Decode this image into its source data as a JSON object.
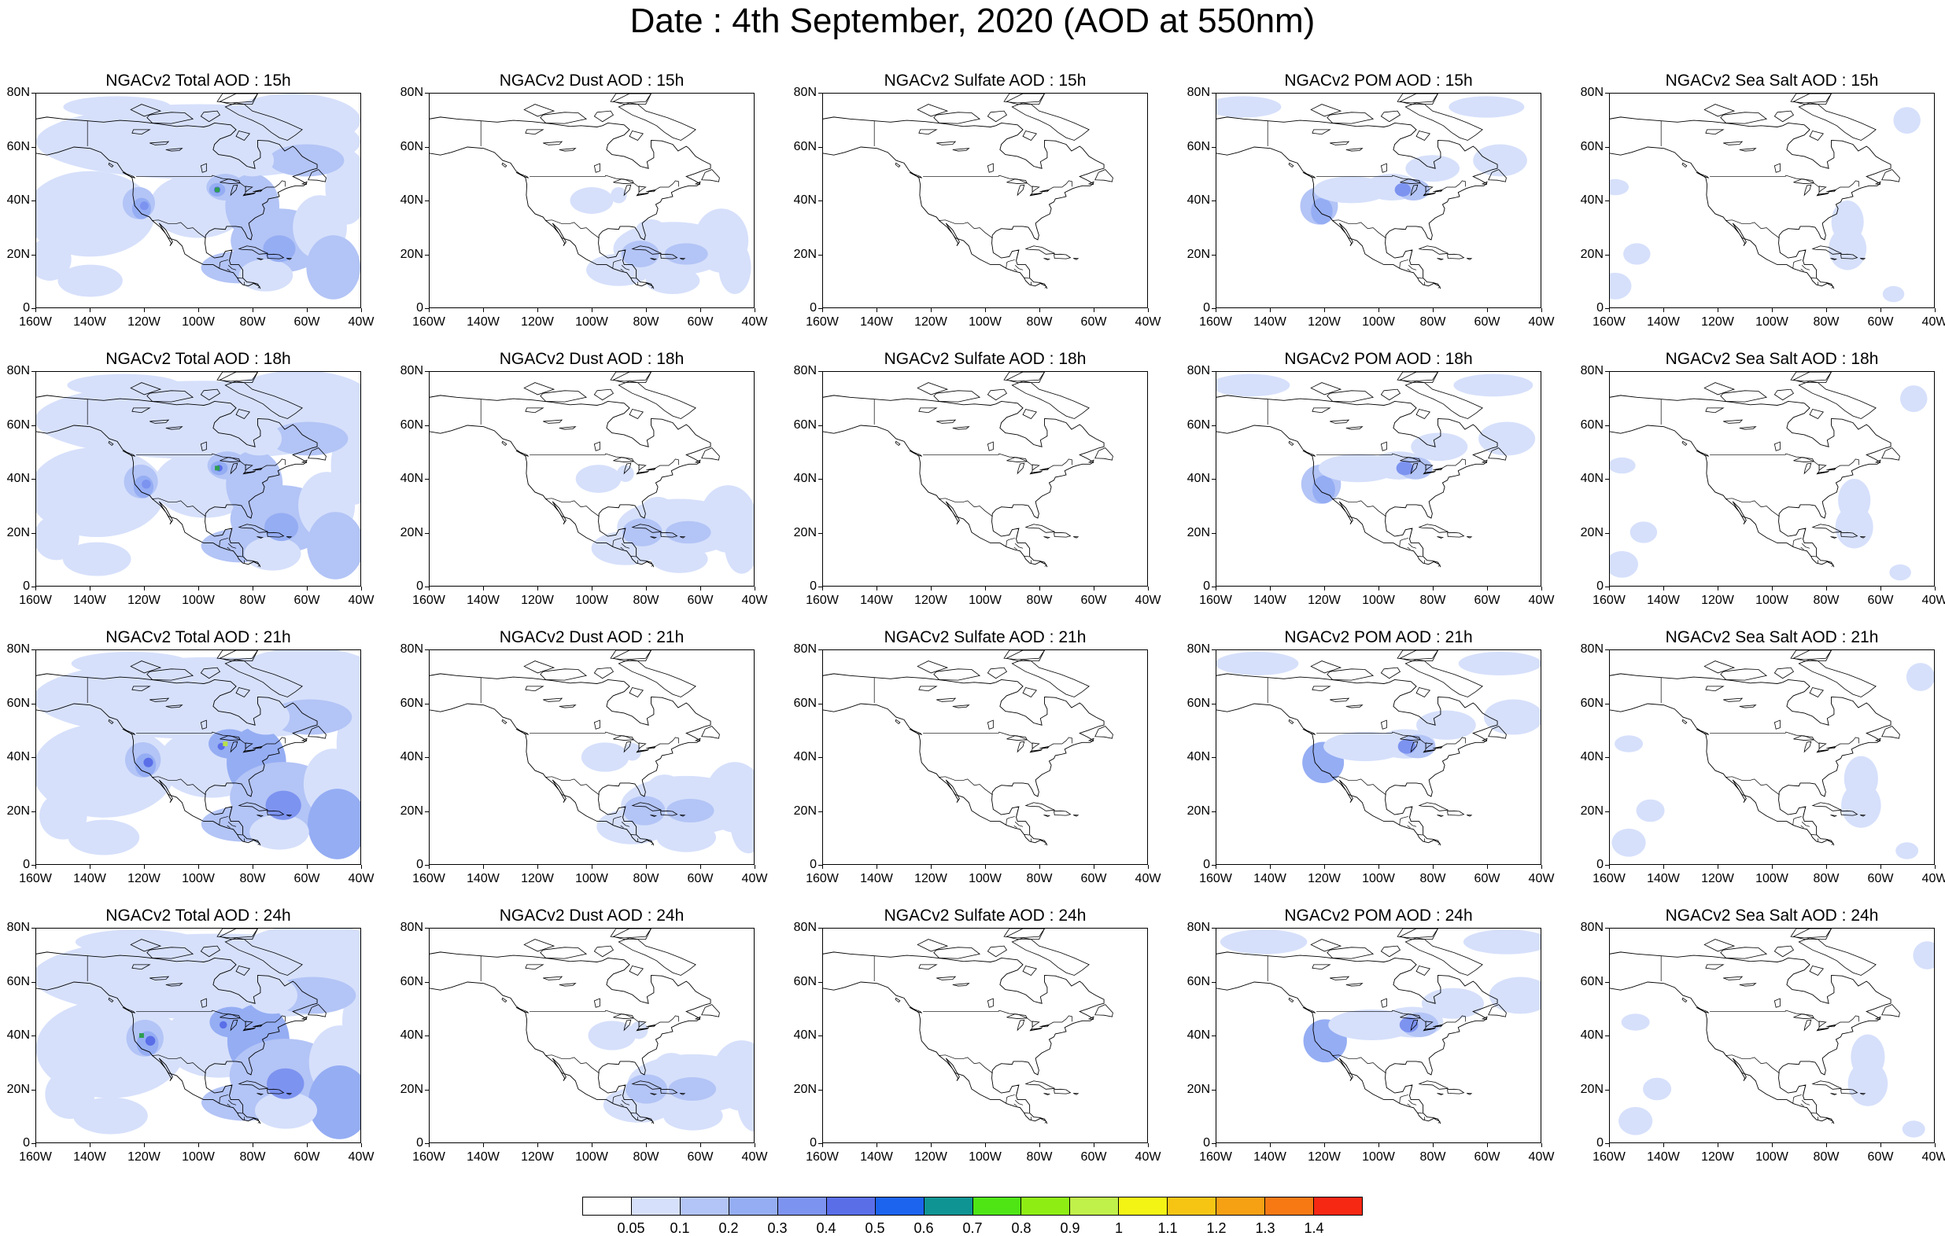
{
  "title": "Date : 4th September, 2020 (AOD at 550nm)",
  "y_tick_labels": [
    "80N",
    "60N",
    "40N",
    "20N",
    "0"
  ],
  "x_tick_labels": [
    "160W",
    "140W",
    "120W",
    "100W",
    "80W",
    "60W",
    "40W"
  ],
  "panels": [
    [
      {
        "title": "NGACv2 Total AOD : 15h",
        "species": "total",
        "intensity": 1.0,
        "accent": "#2e9e50"
      },
      {
        "title": "NGACv2 Dust AOD : 15h",
        "species": "dust",
        "intensity": 1.0
      },
      {
        "title": "NGACv2 Sulfate AOD : 15h",
        "species": "sulfate",
        "intensity": 1.0
      },
      {
        "title": "NGACv2 POM AOD : 15h",
        "species": "pom",
        "intensity": 1.0
      },
      {
        "title": "NGACv2 Sea Salt AOD : 15h",
        "species": "seasalt",
        "intensity": 1.0
      }
    ],
    [
      {
        "title": "NGACv2 Total AOD : 18h",
        "species": "total",
        "intensity": 1.05,
        "accent": "#2e9e50"
      },
      {
        "title": "NGACv2 Dust AOD : 18h",
        "species": "dust",
        "intensity": 1.05
      },
      {
        "title": "NGACv2 Sulfate AOD : 18h",
        "species": "sulfate",
        "intensity": 1.0
      },
      {
        "title": "NGACv2 POM AOD : 18h",
        "species": "pom",
        "intensity": 1.05
      },
      {
        "title": "NGACv2 Sea Salt AOD : 18h",
        "species": "seasalt",
        "intensity": 1.0
      }
    ],
    [
      {
        "title": "NGACv2 Total AOD : 21h",
        "species": "total",
        "intensity": 1.1,
        "accent": "#b8e04a"
      },
      {
        "title": "NGACv2 Dust AOD : 21h",
        "species": "dust",
        "intensity": 1.1
      },
      {
        "title": "NGACv2 Sulfate AOD : 21h",
        "species": "sulfate",
        "intensity": 1.0
      },
      {
        "title": "NGACv2 POM AOD : 21h",
        "species": "pom",
        "intensity": 1.1
      },
      {
        "title": "NGACv2 Sea Salt AOD : 21h",
        "species": "seasalt",
        "intensity": 1.05
      }
    ],
    [
      {
        "title": "NGACv2 Total AOD : 24h",
        "species": "total",
        "intensity": 1.15,
        "accent": "#2e9e50"
      },
      {
        "title": "NGACv2 Dust AOD : 24h",
        "species": "dust",
        "intensity": 1.1
      },
      {
        "title": "NGACv2 Sulfate AOD : 24h",
        "species": "sulfate",
        "intensity": 1.0
      },
      {
        "title": "NGACv2 POM AOD : 24h",
        "species": "pom",
        "intensity": 1.15
      },
      {
        "title": "NGACv2 Sea Salt  AOD : 24h",
        "species": "seasalt",
        "intensity": 1.05
      }
    ]
  ],
  "colorbar": {
    "colors": [
      "#ffffff",
      "#d6e0fb",
      "#b3c4f6",
      "#95adf3",
      "#7d93f0",
      "#5a6ee8",
      "#1c63ee",
      "#0f9393",
      "#4fe514",
      "#8eee14",
      "#c0f04a",
      "#f4f414",
      "#f6c514",
      "#f6a014",
      "#f67914",
      "#f62814"
    ],
    "labels": [
      "0.05",
      "0.1",
      "0.2",
      "0.3",
      "0.4",
      "0.5",
      "0.6",
      "0.7",
      "0.8",
      "0.9",
      "1",
      "1.1",
      "1.2",
      "1.3",
      "1.4"
    ]
  }
}
